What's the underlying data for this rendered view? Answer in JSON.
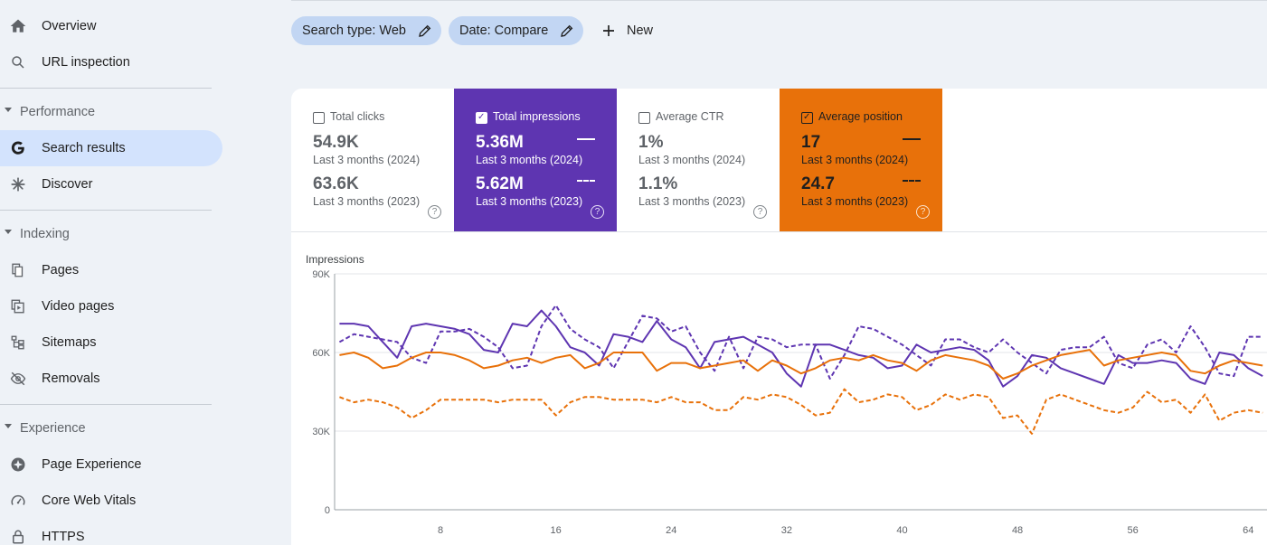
{
  "sidebar": {
    "items": [
      {
        "label": "Overview",
        "icon": "home-icon"
      },
      {
        "label": "URL inspection",
        "icon": "search-icon"
      }
    ],
    "sections": [
      {
        "label": "Performance",
        "items": [
          {
            "label": "Search results",
            "icon": "google-g-icon",
            "active": true
          },
          {
            "label": "Discover",
            "icon": "asterisk-icon"
          }
        ]
      },
      {
        "label": "Indexing",
        "items": [
          {
            "label": "Pages",
            "icon": "pages-icon"
          },
          {
            "label": "Video pages",
            "icon": "video-pages-icon"
          },
          {
            "label": "Sitemaps",
            "icon": "sitemap-icon"
          },
          {
            "label": "Removals",
            "icon": "visibility-off-icon"
          }
        ]
      },
      {
        "label": "Experience",
        "items": [
          {
            "label": "Page Experience",
            "icon": "page-experience-icon"
          },
          {
            "label": "Core Web Vitals",
            "icon": "speedometer-icon"
          },
          {
            "label": "HTTPS",
            "icon": "lock-icon"
          }
        ]
      }
    ]
  },
  "filters": {
    "chips": [
      "Search type: Web",
      "Date: Compare"
    ],
    "new_label": "New"
  },
  "metrics": [
    {
      "title": "Total clicks",
      "checked": false,
      "value_current": "54.9K",
      "period_current": "Last 3 months (2024)",
      "value_previous": "63.6K",
      "period_previous": "Last 3 months (2023)"
    },
    {
      "title": "Total impressions",
      "checked": true,
      "value_current": "5.36M",
      "period_current": "Last 3 months (2024)",
      "value_previous": "5.62M",
      "period_previous": "Last 3 months (2023)",
      "color": "#5e35b1"
    },
    {
      "title": "Average CTR",
      "checked": false,
      "value_current": "1%",
      "period_current": "Last 3 months (2024)",
      "value_previous": "1.1%",
      "period_previous": "Last 3 months (2023)"
    },
    {
      "title": "Average position",
      "checked": true,
      "value_current": "17",
      "period_current": "Last 3 months (2024)",
      "value_previous": "24.7",
      "period_previous": "Last 3 months (2023)",
      "color": "#e8710a"
    }
  ],
  "help_glyph": "?",
  "check_glyph": "✓",
  "chart_data": {
    "type": "line",
    "ylabel": "Impressions",
    "yticks": [
      "90K",
      "60K",
      "30K",
      "0"
    ],
    "ylim": [
      0,
      90000
    ],
    "xticks": [
      8,
      16,
      24,
      32,
      40,
      48,
      56,
      64
    ],
    "grid": true,
    "colors": {
      "impressions": "#5e35b1",
      "position": "#e8710a"
    },
    "x": [
      1,
      2,
      3,
      4,
      5,
      6,
      7,
      8,
      9,
      10,
      11,
      12,
      13,
      14,
      15,
      16,
      17,
      18,
      19,
      20,
      21,
      22,
      23,
      24,
      25,
      26,
      27,
      28,
      29,
      30,
      31,
      32,
      33,
      34,
      35,
      36,
      37,
      38,
      39,
      40,
      41,
      42,
      43,
      44,
      45,
      46,
      47,
      48,
      49,
      50,
      51,
      52,
      53,
      54,
      55,
      56,
      57,
      58,
      59,
      60,
      61,
      62,
      63,
      64,
      65
    ],
    "series": [
      {
        "values": [
          71000,
          71000,
          70000,
          64000,
          58000,
          70000,
          71000,
          70000,
          69000,
          67000,
          61000,
          60000,
          71000,
          70000,
          76000,
          70000,
          62000,
          60000,
          55000,
          67000,
          66000,
          64000,
          72000,
          65000,
          62000,
          54000,
          64000,
          65000,
          66000,
          63000,
          60000,
          52000,
          47000,
          63000,
          63000,
          61000,
          59000,
          58000,
          54000,
          55000,
          63000,
          60000,
          61000,
          62000,
          61000,
          57000,
          47000,
          51000,
          59000,
          58000,
          54000,
          52000,
          50000,
          48000,
          59000,
          56000,
          56000,
          57000,
          56000,
          50000,
          48000,
          60000,
          59000,
          54000,
          51000
        ],
        "color": "#5e35b1",
        "style": "solid"
      },
      {
        "values": [
          64000,
          67000,
          66000,
          65000,
          64000,
          58000,
          56000,
          68000,
          68000,
          69000,
          66000,
          62000,
          54000,
          55000,
          70000,
          78000,
          69000,
          65000,
          62000,
          54000,
          64000,
          74000,
          73000,
          68000,
          70000,
          60000,
          53000,
          66000,
          54000,
          66000,
          65000,
          62000,
          63000,
          63000,
          50000,
          59000,
          70000,
          69000,
          66000,
          63000,
          59000,
          55000,
          65000,
          65000,
          62000,
          60000,
          65000,
          60000,
          56000,
          52000,
          61000,
          62000,
          62000,
          66000,
          56000,
          54000,
          63000,
          65000,
          60000,
          70000,
          62000,
          52000,
          51000,
          66000,
          66000
        ],
        "color": "#5e35b1",
        "style": "dashed"
      },
      {
        "values": [
          59000,
          60000,
          58000,
          54000,
          55000,
          58000,
          60000,
          60000,
          59000,
          57000,
          54000,
          55000,
          57000,
          58000,
          56000,
          58000,
          59000,
          54000,
          56000,
          60000,
          60000,
          60000,
          53000,
          56000,
          56000,
          54000,
          55000,
          56000,
          57000,
          53000,
          57000,
          55000,
          52000,
          54000,
          57000,
          58000,
          57000,
          59000,
          57000,
          56000,
          53000,
          57000,
          59000,
          58000,
          57000,
          55000,
          50000,
          52000,
          55000,
          57000,
          59000,
          60000,
          61000,
          55000,
          57000,
          58000,
          59000,
          60000,
          59000,
          53000,
          52000,
          55000,
          57000,
          56000,
          55000
        ],
        "color": "#e8710a",
        "style": "solid"
      },
      {
        "values": [
          43000,
          41000,
          42000,
          41000,
          39000,
          35000,
          38000,
          42000,
          42000,
          42000,
          42000,
          41000,
          42000,
          42000,
          42000,
          36000,
          41000,
          43000,
          43000,
          42000,
          42000,
          42000,
          41000,
          43000,
          41000,
          41000,
          38000,
          38000,
          43000,
          42000,
          44000,
          43000,
          40000,
          36000,
          37000,
          46000,
          41000,
          42000,
          44000,
          43000,
          38000,
          40000,
          44000,
          42000,
          44000,
          43000,
          35000,
          36000,
          29000,
          42000,
          44000,
          42000,
          40000,
          38000,
          37000,
          39000,
          45000,
          41000,
          42000,
          37000,
          44000,
          34000,
          37000,
          38000,
          37000
        ],
        "color": "#e8710a",
        "style": "dashed"
      }
    ]
  }
}
